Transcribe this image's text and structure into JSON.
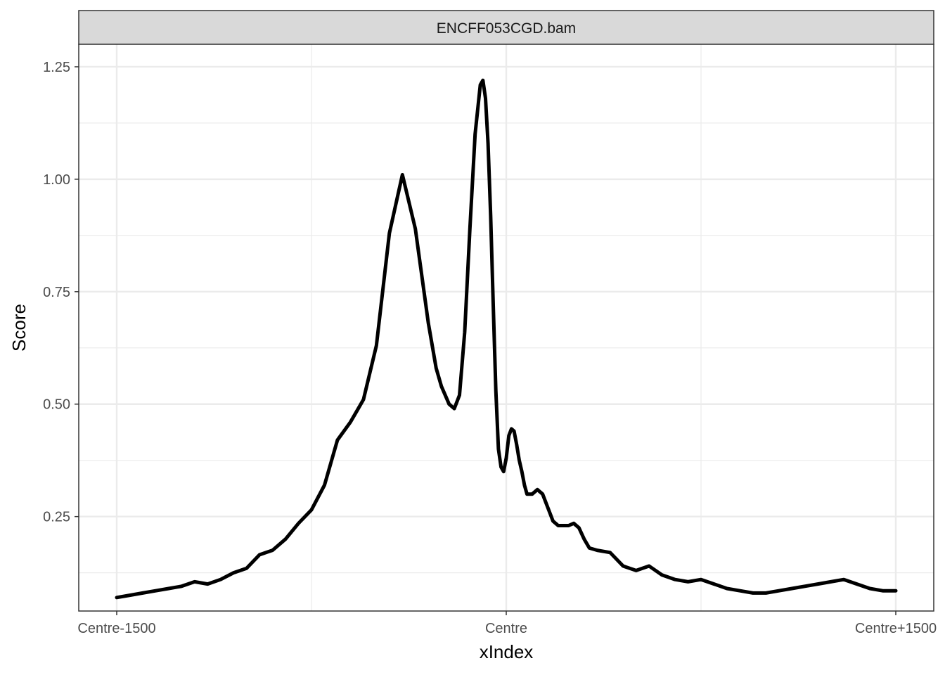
{
  "chart_data": {
    "type": "line",
    "panel_title": "ENCFF053CGD.bam",
    "xlabel": "xIndex",
    "ylabel": "Score",
    "x_ticks": [
      "Centre-1500",
      "Centre",
      "Centre+1500"
    ],
    "x_tick_values": [
      -1500,
      0,
      1500
    ],
    "xlim": [
      -1500,
      1500
    ],
    "y_ticks": [
      "0.25",
      "0.50",
      "0.75",
      "1.00",
      "1.25"
    ],
    "y_tick_values": [
      0.25,
      0.5,
      0.75,
      1.0,
      1.25
    ],
    "ylim": [
      0.04,
      1.3
    ],
    "grid": true,
    "line_color": "#000000",
    "series": [
      {
        "x": [
          -1500,
          -1450,
          -1400,
          -1350,
          -1300,
          -1250,
          -1200,
          -1150,
          -1100,
          -1050,
          -1000,
          -950,
          -900,
          -850,
          -800,
          -750,
          -700,
          -650,
          -600,
          -550,
          -500,
          -450,
          -400,
          -350,
          -300,
          -270,
          -250,
          -220,
          -200,
          -180,
          -160,
          -140,
          -120,
          -100,
          -90,
          -80,
          -70,
          -60,
          -50,
          -40,
          -30,
          -20,
          -10,
          0,
          10,
          20,
          30,
          40,
          50,
          60,
          70,
          80,
          90,
          100,
          120,
          140,
          160,
          180,
          200,
          220,
          240,
          260,
          280,
          300,
          320,
          350,
          400,
          450,
          500,
          550,
          600,
          650,
          700,
          750,
          800,
          850,
          900,
          950,
          1000,
          1050,
          1100,
          1150,
          1200,
          1250,
          1300,
          1350,
          1400,
          1450,
          1500
        ],
        "y": [
          0.07,
          0.075,
          0.08,
          0.085,
          0.09,
          0.095,
          0.105,
          0.1,
          0.11,
          0.125,
          0.135,
          0.165,
          0.175,
          0.2,
          0.235,
          0.265,
          0.32,
          0.42,
          0.46,
          0.51,
          0.63,
          0.88,
          1.01,
          0.89,
          0.68,
          0.58,
          0.54,
          0.5,
          0.49,
          0.52,
          0.66,
          0.89,
          1.1,
          1.21,
          1.22,
          1.18,
          1.08,
          0.92,
          0.72,
          0.53,
          0.4,
          0.36,
          0.35,
          0.38,
          0.43,
          0.445,
          0.44,
          0.41,
          0.375,
          0.35,
          0.32,
          0.3,
          0.3,
          0.3,
          0.31,
          0.3,
          0.27,
          0.24,
          0.23,
          0.23,
          0.23,
          0.235,
          0.225,
          0.2,
          0.18,
          0.175,
          0.17,
          0.14,
          0.13,
          0.14,
          0.12,
          0.11,
          0.105,
          0.11,
          0.1,
          0.09,
          0.085,
          0.08,
          0.08,
          0.085,
          0.09,
          0.095,
          0.1,
          0.105,
          0.11,
          0.1,
          0.09,
          0.085,
          0.085
        ]
      }
    ]
  }
}
